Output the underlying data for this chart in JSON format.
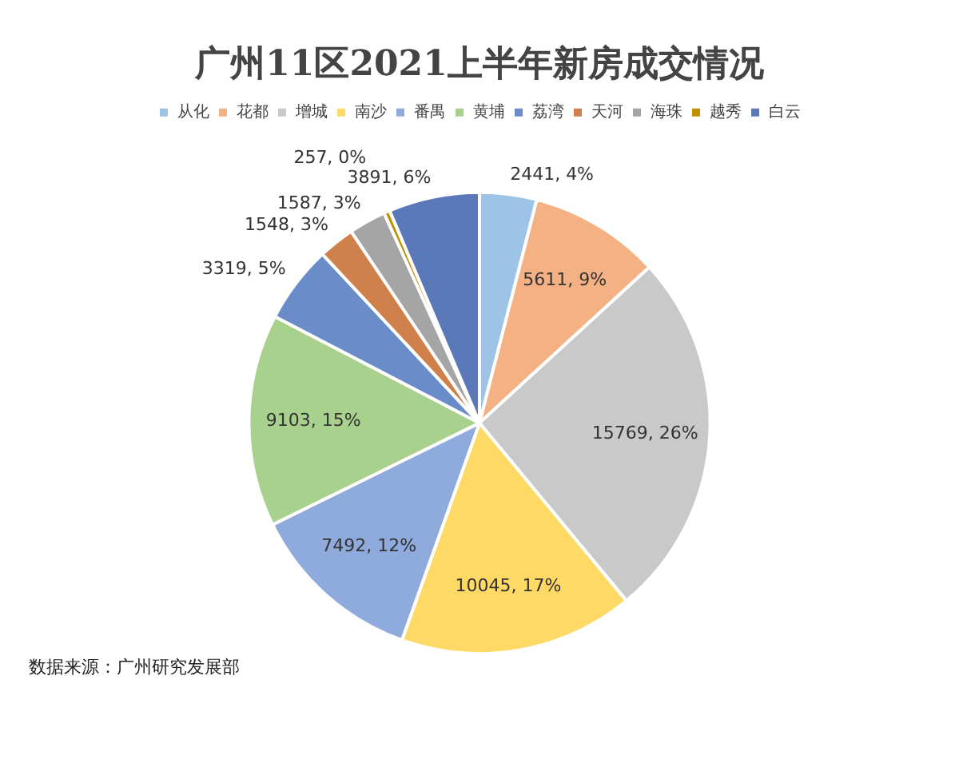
{
  "chart_data": {
    "type": "pie",
    "title": "广州11区2021上半年新房成交情况",
    "categories": [
      "从化",
      "花都",
      "增城",
      "南沙",
      "番禺",
      "黄埔",
      "荔湾",
      "天河",
      "海珠",
      "越秀",
      "白云"
    ],
    "values": [
      2441,
      5611,
      15769,
      10045,
      7492,
      9103,
      3319,
      1548,
      1587,
      257,
      3891
    ],
    "value_labels": [
      "2441, 4%",
      "5611, 9%",
      "15769, 26%",
      "10045, 17%",
      "7492, 12%",
      "9103, 15%",
      "3319, 5%",
      "1548, 3%",
      "1587, 3%",
      "257, 0%",
      "3891, 6%"
    ],
    "colors": [
      "#9dc3e6",
      "#f4b183",
      "#c9c9c9",
      "#ffd966",
      "#8faadc",
      "#a9d18e",
      "#6a8cc8",
      "#d0804a",
      "#a5a5a5",
      "#bf9000",
      "#5b78b8"
    ],
    "legend": "top",
    "annotations": [
      "数据来源：广州研究发展部"
    ]
  }
}
